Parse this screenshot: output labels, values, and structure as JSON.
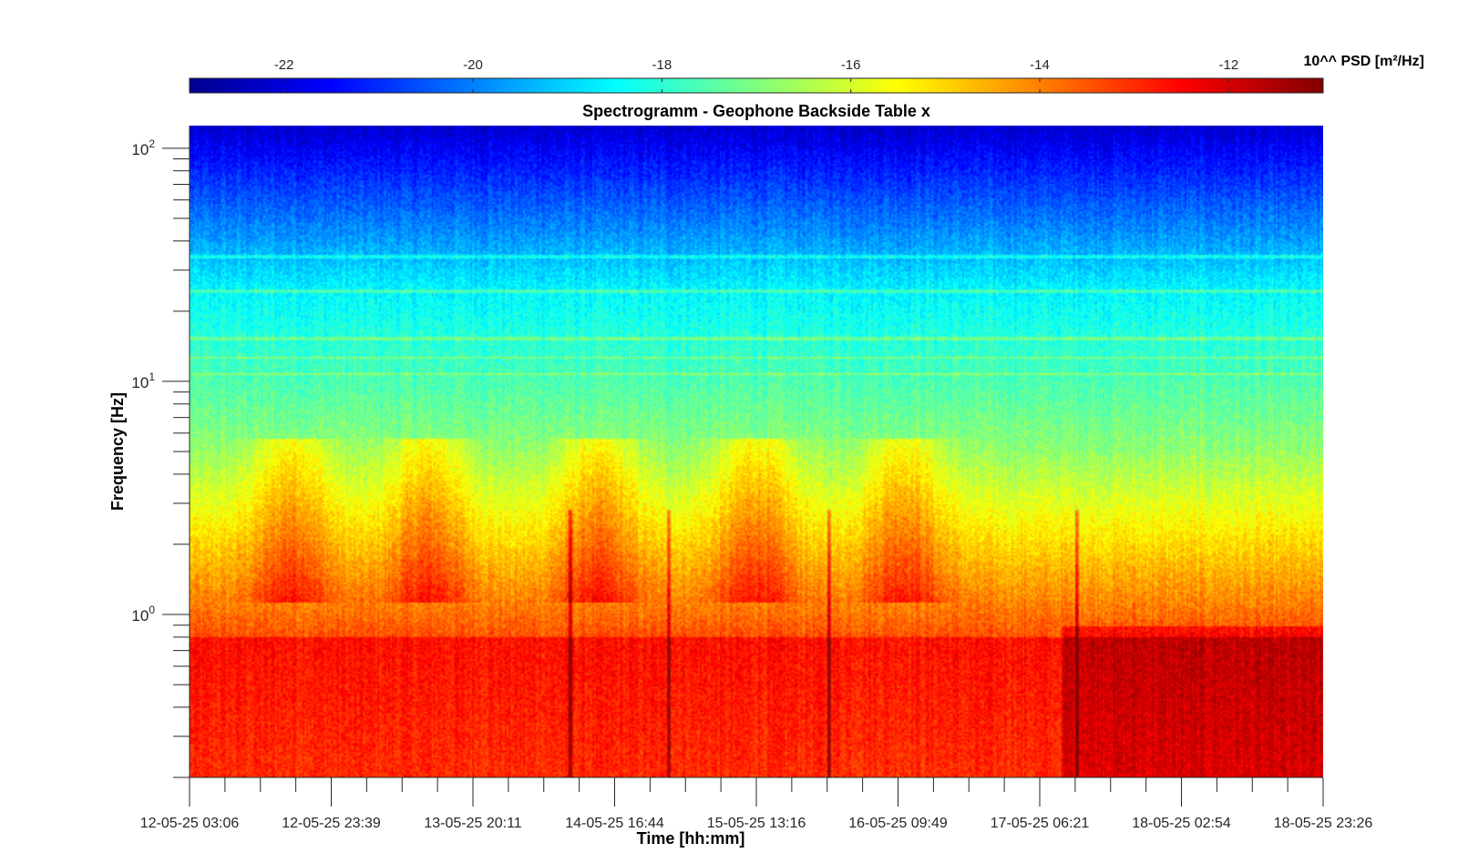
{
  "chart_data": {
    "type": "heatmap",
    "title": "Spectrogramm - Geophone Backside Table x",
    "xlabel": "Time [hh:mm]",
    "ylabel": "Frequency [Hz]",
    "y_scale": "log",
    "ylim": [
      0.2,
      125
    ],
    "y_ticks": [
      1,
      10,
      100
    ],
    "y_tick_labels": [
      {
        "base": "10",
        "exp": "0"
      },
      {
        "base": "10",
        "exp": "1"
      },
      {
        "base": "10",
        "exp": "2"
      }
    ],
    "x_range": [
      "12-05-25 03:06",
      "18-05-25 23:26"
    ],
    "x_tick_labels": [
      "12-05-25 03:06",
      "12-05-25 23:39",
      "13-05-25 20:11",
      "14-05-25 16:44",
      "15-05-25 13:16",
      "16-05-25 09:49",
      "17-05-25 06:21",
      "18-05-25 02:54",
      "18-05-25 23:26"
    ],
    "colorbar": {
      "label": "10^^ PSD [m²/Hz]",
      "range": [
        -23,
        -11
      ],
      "ticks": [
        -22,
        -20,
        -18,
        -16,
        -14,
        -12
      ],
      "tick_labels": [
        "-22",
        "-20",
        "-18",
        "-16",
        "-14",
        "-12"
      ],
      "colormap": "jet",
      "colors": [
        "#00008f",
        "#0000ff",
        "#00ffff",
        "#ffff00",
        "#ff0000",
        "#800000"
      ]
    },
    "grid": false,
    "features": {
      "day_cycle_peaks": [
        "12-05-25 13:00",
        "13-05-25 08:00",
        "14-05-25 06:00",
        "15-05-25 10:00",
        "16-05-25 12:00"
      ],
      "quiet_high_energy_period": [
        "17-05-25 16:00",
        "18-05-25 23:26"
      ],
      "persistent_lines_hz": [
        10.8,
        12.7,
        15.3,
        24.5,
        34.5
      ]
    }
  }
}
